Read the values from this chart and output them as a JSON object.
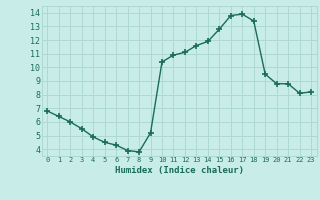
{
  "x": [
    0,
    1,
    2,
    3,
    4,
    5,
    6,
    7,
    8,
    9,
    10,
    11,
    12,
    13,
    14,
    15,
    16,
    17,
    18,
    19,
    20,
    21,
    22,
    23
  ],
  "y": [
    6.8,
    6.4,
    6.0,
    5.5,
    4.9,
    4.5,
    4.3,
    3.9,
    3.8,
    5.2,
    10.4,
    10.9,
    11.1,
    11.6,
    11.9,
    12.8,
    13.8,
    13.9,
    13.4,
    9.5,
    8.8,
    8.8,
    8.1,
    8.2
  ],
  "line_color": "#1a6b5a",
  "marker": "+",
  "bg_color": "#c8ede8",
  "grid_color": "#aed8d2",
  "xlabel": "Humidex (Indice chaleur)",
  "xlim": [
    -0.5,
    23.5
  ],
  "ylim": [
    3.5,
    14.5
  ],
  "yticks": [
    4,
    5,
    6,
    7,
    8,
    9,
    10,
    11,
    12,
    13,
    14
  ],
  "xticks": [
    0,
    1,
    2,
    3,
    4,
    5,
    6,
    7,
    8,
    9,
    10,
    11,
    12,
    13,
    14,
    15,
    16,
    17,
    18,
    19,
    20,
    21,
    22,
    23
  ],
  "tick_color": "#1a6b5a",
  "xlabel_color": "#1a6b5a",
  "linewidth": 1.0,
  "markersize": 4,
  "markeredgewidth": 1.2
}
